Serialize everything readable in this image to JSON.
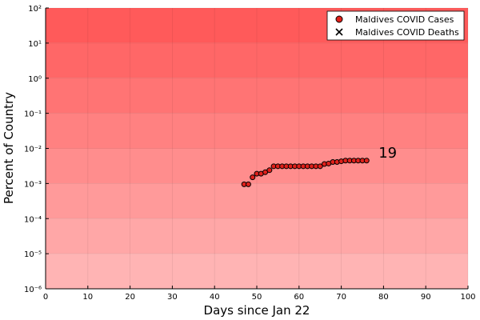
{
  "chart_data": {
    "type": "scatter",
    "xlabel": "Days since Jan 22",
    "ylabel": "Percent of Country",
    "xlim": [
      0,
      100
    ],
    "ylim_log10": [
      -6,
      2
    ],
    "y_scale": "log",
    "x_ticks": [
      "0",
      "10",
      "20",
      "30",
      "40",
      "50",
      "60",
      "70",
      "80",
      "90",
      "100"
    ],
    "y_ticks": [
      "10⁻⁶",
      "10⁻⁵",
      "10⁻⁴",
      "10⁻³",
      "10⁻²",
      "10⁻¹",
      "10⁰",
      "10¹",
      "10²"
    ],
    "grid": true,
    "legend_position": "top-right",
    "series": [
      {
        "name": "Maldives COVID Cases",
        "marker": "circle",
        "color": "#e0201b",
        "x": [
          47,
          48,
          49,
          50,
          51,
          52,
          53,
          54,
          55,
          56,
          57,
          58,
          59,
          60,
          61,
          62,
          63,
          64,
          65,
          66,
          67,
          68,
          69,
          70,
          71,
          72,
          73,
          74,
          75,
          76
        ],
        "y": [
          0.00095,
          0.00095,
          0.0015,
          0.0019,
          0.0019,
          0.0021,
          0.0024,
          0.0031,
          0.0031,
          0.0031,
          0.0031,
          0.0031,
          0.0031,
          0.0031,
          0.0031,
          0.0031,
          0.0031,
          0.0031,
          0.0031,
          0.0036,
          0.0037,
          0.0041,
          0.0041,
          0.0043,
          0.0045,
          0.0045,
          0.0045,
          0.0045,
          0.0045,
          0.0045
        ]
      },
      {
        "name": "Maldives COVID Deaths",
        "marker": "x",
        "color": "#000000",
        "x": [],
        "y": []
      }
    ],
    "annotations": [
      {
        "text": "19",
        "x": 81,
        "y": 0.0075
      }
    ]
  }
}
